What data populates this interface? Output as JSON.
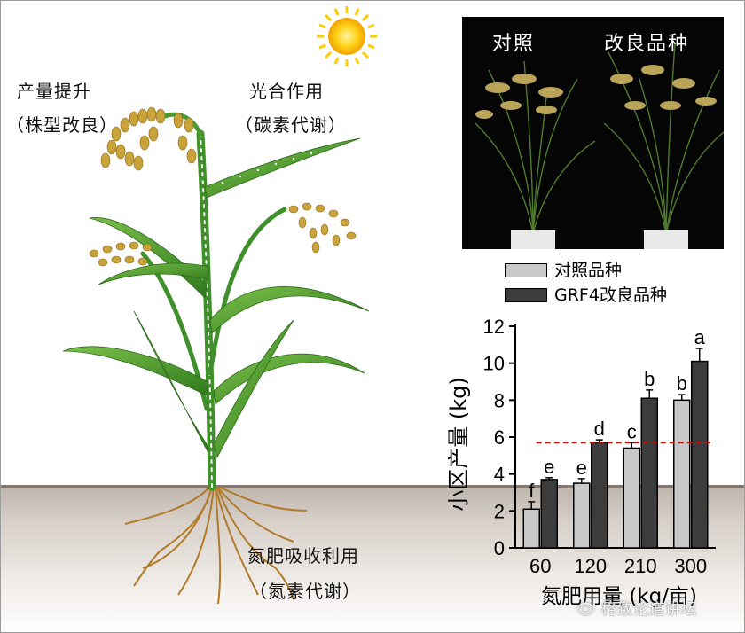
{
  "diagram": {
    "yield_label": "产量提升",
    "yield_sub": "（株型改良）",
    "photo_label": "光合作用",
    "photo_sub": "（碳素代谢）",
    "nitrogen_label": "氮肥吸收利用",
    "nitrogen_sub": "（氮素代谢）"
  },
  "photo": {
    "left_label": "对照",
    "right_label": "改良品种"
  },
  "watermark": "👁 格致论道讲坛",
  "colors": {
    "control": "#c8c8c8",
    "improved": "#3c3c3c",
    "reference_line": "#e00000"
  },
  "chart_data": {
    "type": "bar",
    "xlabel": "氮肥用量 (kg/亩)",
    "ylabel": "小区产量 (kg)",
    "categories": [
      "60",
      "120",
      "210",
      "300"
    ],
    "ylim": [
      0,
      12
    ],
    "yticks": [
      0,
      2,
      4,
      6,
      8,
      10,
      12
    ],
    "legend_placement": "top",
    "series": [
      {
        "name": "对照品种",
        "color": "#c8c8c8",
        "values": [
          2.1,
          3.5,
          5.4,
          8.0
        ],
        "errors": [
          0.4,
          0.25,
          0.3,
          0.3
        ],
        "letters": [
          "f",
          "e",
          "c",
          "b"
        ]
      },
      {
        "name": "GRF4改良品种",
        "color": "#3c3c3c",
        "values": [
          3.7,
          5.7,
          8.1,
          10.1
        ],
        "errors": [
          0.1,
          0.15,
          0.45,
          0.7
        ],
        "letters": [
          "e",
          "d",
          "b",
          "a"
        ]
      }
    ],
    "reference_line": 5.7
  }
}
